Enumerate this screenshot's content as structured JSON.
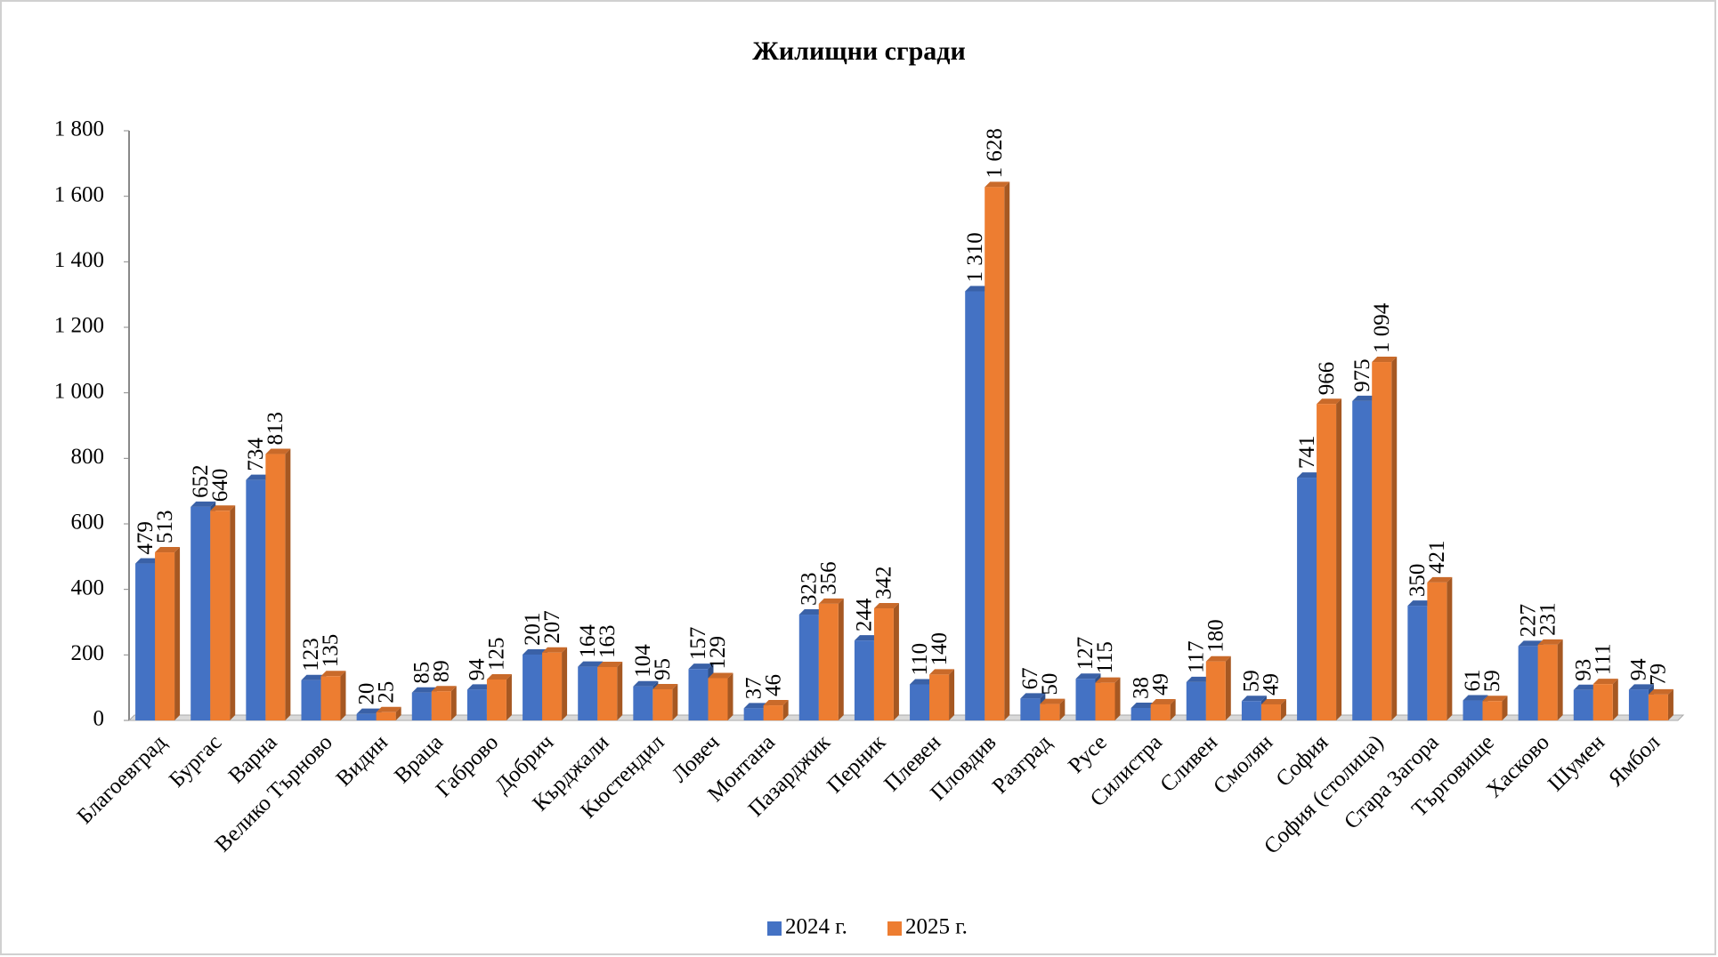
{
  "chart_data": {
    "type": "bar",
    "title": "Жилищни сгради",
    "categories": [
      "Благоевград",
      "Бургас",
      "Варна",
      "Велико Търново",
      "Видин",
      "Враца",
      "Габрово",
      "Добрич",
      "Кърджали",
      "Кюстендил",
      "Ловеч",
      "Монтана",
      "Пазарджик",
      "Перник",
      "Плевен",
      "Пловдив",
      "Разград",
      "Русе",
      "Силистра",
      "Сливен",
      "Смолян",
      "София",
      "София (столица)",
      "Стара Загора",
      "Търговище",
      "Хасково",
      "Шумен",
      "Ямбол"
    ],
    "series": [
      {
        "name": "2024 г.",
        "color": "#4472c4",
        "values": [
          479,
          652,
          734,
          123,
          20,
          85,
          94,
          201,
          164,
          104,
          157,
          37,
          323,
          244,
          110,
          1310,
          67,
          127,
          38,
          117,
          59,
          741,
          975,
          350,
          61,
          227,
          93,
          94
        ],
        "value_labels": [
          "479",
          "652",
          "734",
          "123",
          "20",
          "85",
          "94",
          "201",
          "164",
          "104",
          "157",
          "37",
          "323",
          "244",
          "110",
          "1 310",
          "67",
          "127",
          "38",
          "117",
          "59",
          "741",
          "975",
          "350",
          "61",
          "227",
          "93",
          "94"
        ]
      },
      {
        "name": "2025 г.",
        "color": "#ed7d31",
        "values": [
          513,
          640,
          813,
          135,
          25,
          89,
          125,
          207,
          163,
          95,
          129,
          46,
          356,
          342,
          140,
          1628,
          50,
          115,
          49,
          180,
          49,
          966,
          1094,
          421,
          59,
          231,
          111,
          79
        ],
        "value_labels": [
          "513",
          "640",
          "813",
          "135",
          "25",
          "89",
          "125",
          "207",
          "163",
          "95",
          "129",
          "46",
          "356",
          "342",
          "140",
          "1 628",
          "50",
          "115",
          "49",
          "180",
          "49",
          "966",
          "1 094",
          "421",
          "59",
          "231",
          "111",
          "79"
        ]
      }
    ],
    "ylim": [
      0,
      1800
    ],
    "yticks": [
      0,
      200,
      400,
      600,
      800,
      {
        "value": 1000,
        "label": "1 000"
      },
      {
        "value": 1200,
        "label": "1 200"
      },
      {
        "value": 1400,
        "label": "1 400"
      },
      {
        "value": 1600,
        "label": "1 600"
      },
      {
        "value": 1800,
        "label": "1 800"
      }
    ],
    "grid": false,
    "legend": "bottom"
  }
}
